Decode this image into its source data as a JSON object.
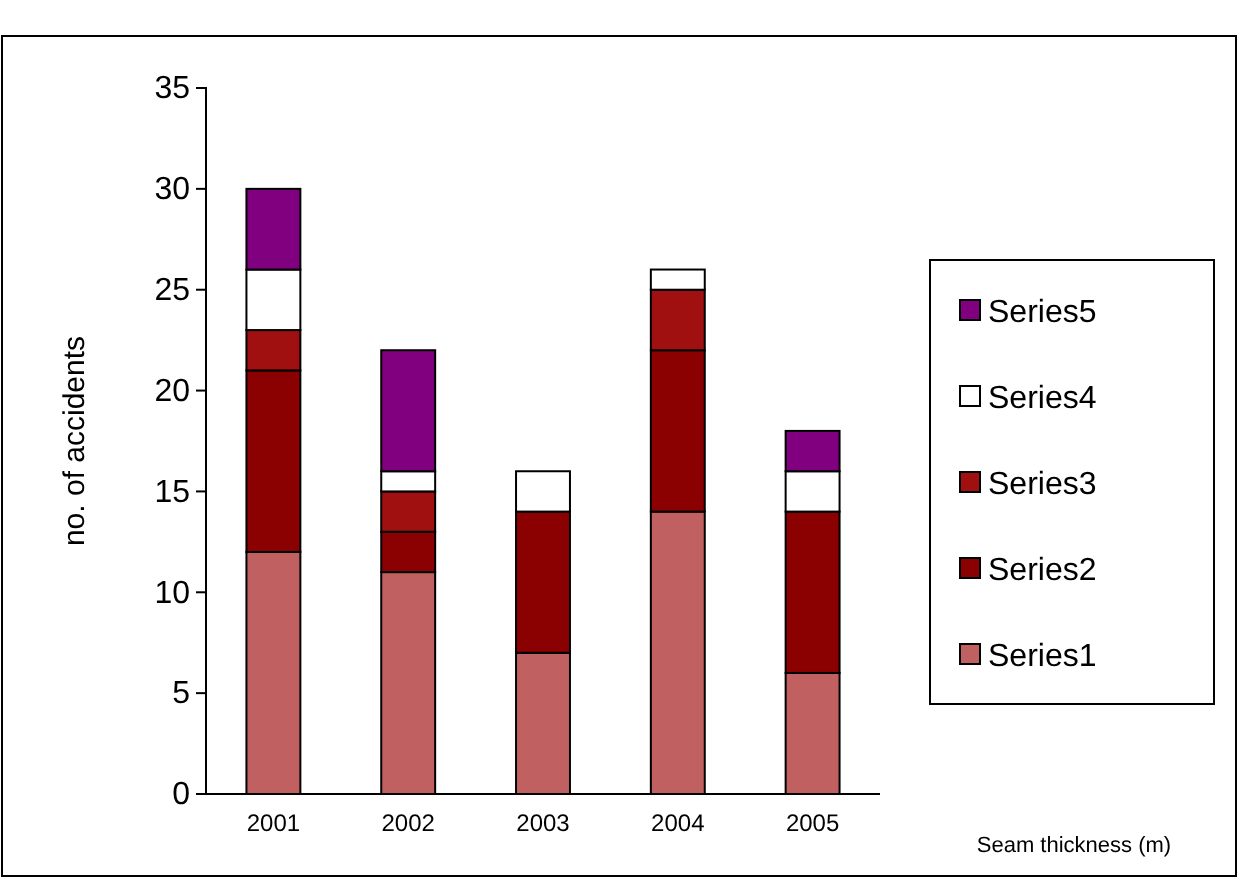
{
  "chart_data": {
    "type": "bar",
    "stacked": true,
    "xlabel": "Seam thickness (m)",
    "ylabel": "no. of accidents",
    "categories": [
      "2001",
      "2002",
      "2003",
      "2004",
      "2005"
    ],
    "series": [
      {
        "name": "Series1",
        "color": "#c06060",
        "values": [
          12,
          11,
          7,
          14,
          6
        ]
      },
      {
        "name": "Series2",
        "color": "#8b0000",
        "values": [
          9,
          2,
          7,
          8,
          8
        ]
      },
      {
        "name": "Series3",
        "color": "#a01010",
        "values": [
          2,
          2,
          0,
          3,
          0
        ]
      },
      {
        "name": "Series4",
        "color": "#ffffff",
        "values": [
          3,
          1,
          2,
          1,
          2
        ]
      },
      {
        "name": "Series5",
        "color": "#800080",
        "values": [
          4,
          6,
          0,
          0,
          2
        ]
      }
    ],
    "ylim": [
      0,
      35
    ],
    "yticks": [
      0,
      5,
      10,
      15,
      20,
      25,
      30,
      35
    ],
    "grid": false,
    "legend": "right"
  }
}
